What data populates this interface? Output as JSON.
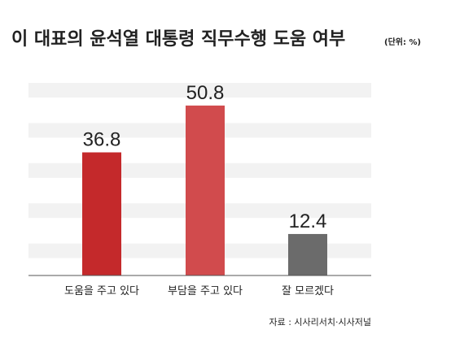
{
  "chart_data": {
    "type": "bar",
    "title": "이 대표의 윤석열 대통령 직무수행 도움 여부",
    "unit_note": "(단위: %)",
    "categories": [
      "도움을 주고 있다",
      "부담을 주고 있다",
      "잘 모르겠다"
    ],
    "values": [
      36.8,
      50.8,
      12.4
    ],
    "value_labels": [
      "36.8",
      "50.8",
      "12.4"
    ],
    "bar_colors": [
      "#c4292b",
      "#d14b4d",
      "#6b6b6b"
    ],
    "ylim": [
      0,
      60
    ],
    "grid": "horizontal bands",
    "xlabel": "",
    "ylabel": "",
    "source": "자료 : 시사리서치·시사저널"
  },
  "colors": {
    "band": "#f2f2f2",
    "axis": "#555555",
    "text": "#222222"
  }
}
